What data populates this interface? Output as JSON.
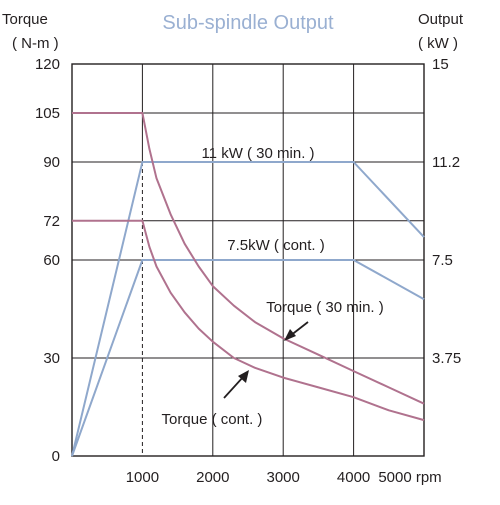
{
  "chart_data": {
    "type": "line",
    "title": "Sub-spindle Output",
    "left_axis": {
      "title_line1": "Torque",
      "title_line2": "( N-m )",
      "ticks": [
        "0",
        "30",
        "60",
        "72",
        "90",
        "105",
        "120"
      ],
      "tick_values": [
        0,
        30,
        60,
        72,
        90,
        105,
        120
      ],
      "ylim": [
        0,
        120
      ]
    },
    "right_axis": {
      "title_line1": "Output",
      "title_line2": "( kW )",
      "ticks": [
        "3.75",
        "7.5",
        "11.2",
        "15"
      ],
      "tick_values": [
        30,
        60,
        90,
        120
      ]
    },
    "x_axis": {
      "ticks": [
        "1000",
        "2000",
        "3000",
        "4000",
        "5000 rpm"
      ],
      "tick_values": [
        1000,
        2000,
        3000,
        4000,
        5000
      ],
      "xlim": [
        0,
        5000
      ]
    },
    "grid": true,
    "series": [
      {
        "name": "11 kW ( 30 min. )",
        "axis": "output",
        "color": "#8fa8cc",
        "x": [
          0,
          1000,
          4000,
          5000
        ],
        "y": [
          0,
          90,
          90,
          67
        ]
      },
      {
        "name": "7.5kW ( cont. )",
        "axis": "output",
        "color": "#8fa8cc",
        "x": [
          0,
          1000,
          4000,
          5000
        ],
        "y": [
          0,
          60,
          60,
          48
        ]
      },
      {
        "name": "Torque ( 30 min. )",
        "axis": "torque",
        "color": "#b0728e",
        "x": [
          0,
          1000,
          1100,
          1200,
          1400,
          1600,
          1800,
          2000,
          2300,
          2600,
          3000,
          3500,
          4000,
          4500,
          5000
        ],
        "y": [
          105,
          105,
          94,
          85,
          74,
          65,
          58,
          52,
          46,
          41,
          36,
          31,
          26,
          21,
          16
        ]
      },
      {
        "name": "Torque ( cont. )",
        "axis": "torque",
        "color": "#b0728e",
        "x": [
          0,
          1000,
          1100,
          1200,
          1400,
          1600,
          1800,
          2000,
          2300,
          2600,
          3000,
          3500,
          4000,
          4500,
          5000
        ],
        "y": [
          72,
          72,
          64,
          58,
          50,
          44,
          39,
          35,
          30,
          27,
          24,
          21,
          18,
          14,
          11
        ]
      }
    ],
    "annotations": {
      "kw30": "11 kW ( 30 min. )",
      "kwcont": "7.5kW ( cont. )",
      "torque30": "Torque ( 30 min. )",
      "torquecont": "Torque ( cont. )"
    }
  }
}
